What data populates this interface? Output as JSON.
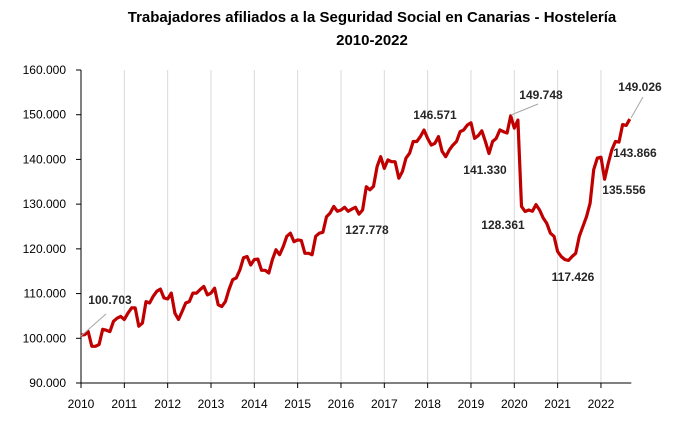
{
  "chart_data": {
    "type": "line",
    "title": "Trabajadores afiliados a la Seguridad Social en Canarias - Hostelería",
    "subtitle": "2010-2022",
    "xlabel": "",
    "ylabel": "",
    "ylim": [
      90000,
      160000
    ],
    "yticks": [
      "90.000",
      "100.000",
      "110.000",
      "120.000",
      "130.000",
      "140.000",
      "150.000",
      "160.000"
    ],
    "xticks": [
      "2010",
      "2011",
      "2012",
      "2013",
      "2014",
      "2015",
      "2016",
      "2017",
      "2018",
      "2019",
      "2020",
      "2021",
      "2022"
    ],
    "grid": "vertical",
    "line_color": "#c00000",
    "x_start": "2010-01",
    "x_frequency": "monthly",
    "values": [
      100703,
      100800,
      101500,
      98200,
      98200,
      98600,
      102000,
      101800,
      101500,
      103800,
      104500,
      104900,
      104200,
      105600,
      106800,
      106800,
      102700,
      103400,
      108200,
      107900,
      109400,
      110500,
      111000,
      109000,
      108800,
      110100,
      105600,
      104200,
      106000,
      107900,
      108200,
      110100,
      110100,
      110900,
      111600,
      109700,
      110100,
      111200,
      107500,
      107100,
      108200,
      110900,
      113100,
      113500,
      115300,
      118000,
      118300,
      116400,
      117600,
      117700,
      115200,
      115200,
      114600,
      117600,
      119800,
      118700,
      120500,
      122800,
      123500,
      121600,
      122000,
      121900,
      119000,
      119000,
      118700,
      122800,
      123500,
      123700,
      127200,
      128000,
      129500,
      128400,
      128700,
      129300,
      128400,
      128900,
      129300,
      127778,
      128700,
      133900,
      133200,
      134000,
      138400,
      140600,
      138000,
      139900,
      139500,
      139500,
      135800,
      137300,
      140300,
      141400,
      144000,
      144000,
      145100,
      146571,
      144700,
      143200,
      143600,
      145100,
      141800,
      140600,
      142100,
      143200,
      144000,
      146200,
      146600,
      147700,
      148200,
      144700,
      145300,
      146400,
      144000,
      141330,
      144000,
      144700,
      146600,
      146200,
      145900,
      149748,
      147000,
      148800,
      129500,
      128361,
      128700,
      128400,
      129900,
      128700,
      126900,
      125700,
      123500,
      122800,
      119400,
      118300,
      117600,
      117426,
      118300,
      119000,
      122800,
      125000,
      127200,
      130200,
      137700,
      140300,
      140500,
      135556,
      139100,
      142100,
      144000,
      143866,
      147800,
      147600,
      149026
    ],
    "annotations": [
      {
        "label": "100.703",
        "date": "2010-01"
      },
      {
        "label": "127.778",
        "date": "2016-06"
      },
      {
        "label": "146.571",
        "date": "2017-12"
      },
      {
        "label": "141.330",
        "date": "2019-06"
      },
      {
        "label": "149.748",
        "date": "2019-12"
      },
      {
        "label": "128.361",
        "date": "2020-04"
      },
      {
        "label": "117.426",
        "date": "2021-04"
      },
      {
        "label": "135.556",
        "date": "2022-02"
      },
      {
        "label": "143.866",
        "date": "2022-06"
      },
      {
        "label": "149.026",
        "date": "2022-09"
      }
    ]
  }
}
